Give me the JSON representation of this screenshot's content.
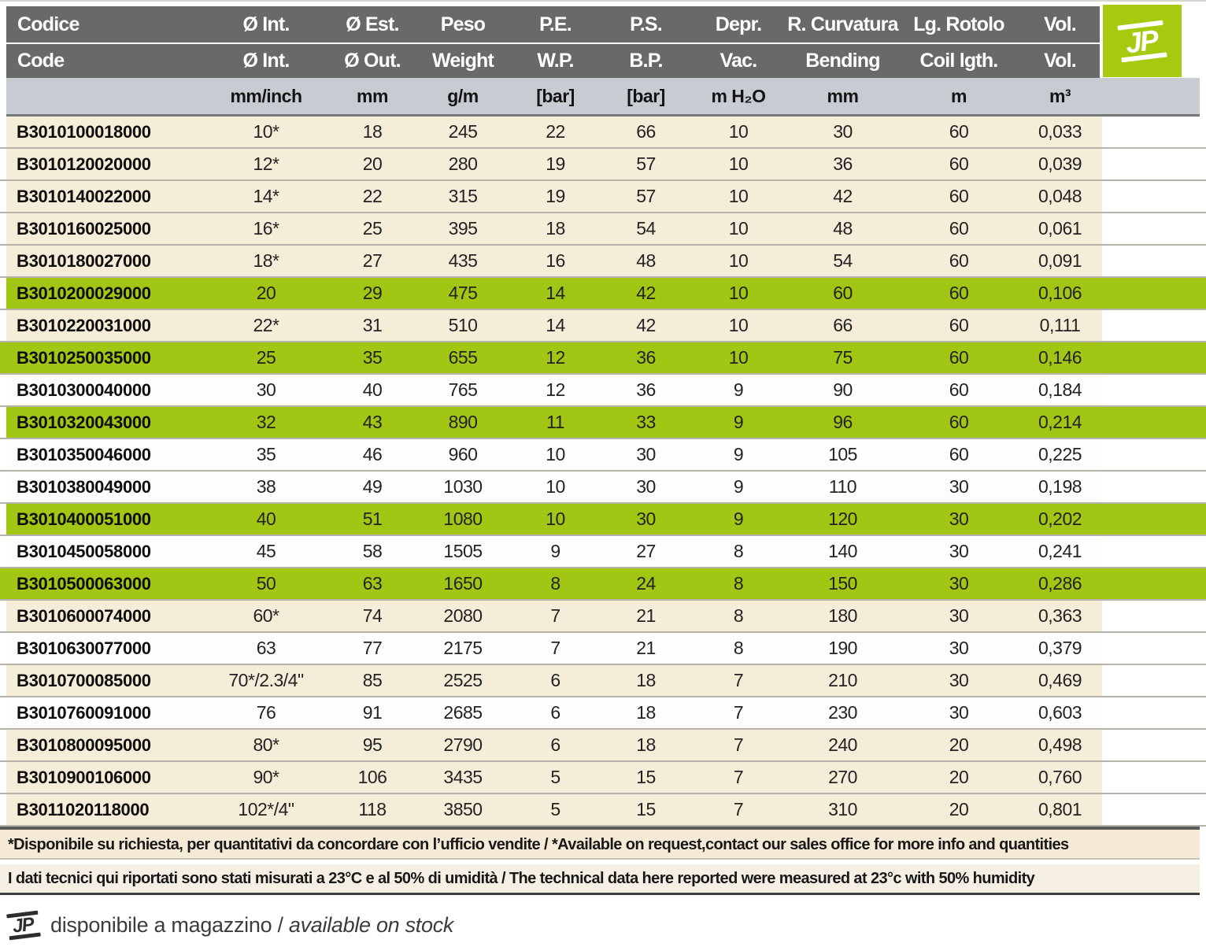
{
  "logo": {
    "text": "JP"
  },
  "table": {
    "header_it": [
      "Codice",
      "Ø Int.",
      "Ø Est.",
      "Peso",
      "P.E.",
      "P.S.",
      "Depr.",
      "R. Curvatura",
      "Lg. Rotolo",
      "Vol."
    ],
    "header_en": [
      "Code",
      "Ø Int.",
      "Ø Out.",
      "Weight",
      "W.P.",
      "B.P.",
      "Vac.",
      "Bending",
      "Coil lgth.",
      "Vol."
    ],
    "units": [
      "",
      "mm/inch",
      "mm",
      "g/m",
      "[bar]",
      "[bar]",
      "m H₂O",
      "mm",
      "m",
      "m³"
    ],
    "column_keys": [
      "code",
      "diam-int",
      "diam-out",
      "weight",
      "working-pressure",
      "burst-pressure",
      "vacuum",
      "bending-radius",
      "coil-length",
      "volume"
    ],
    "rows": [
      {
        "cells": [
          "B3010100018000",
          "10*",
          "18",
          "245",
          "22",
          "66",
          "10",
          "30",
          "60",
          "0,033"
        ],
        "style": "cream",
        "bleed_left": false
      },
      {
        "cells": [
          "B3010120020000",
          "12*",
          "20",
          "280",
          "19",
          "57",
          "10",
          "36",
          "60",
          "0,039"
        ],
        "style": "cream",
        "bleed_left": false
      },
      {
        "cells": [
          "B3010140022000",
          "14*",
          "22",
          "315",
          "19",
          "57",
          "10",
          "42",
          "60",
          "0,048"
        ],
        "style": "cream",
        "bleed_left": false
      },
      {
        "cells": [
          "B3010160025000",
          "16*",
          "25",
          "395",
          "18",
          "54",
          "10",
          "48",
          "60",
          "0,061"
        ],
        "style": "cream",
        "bleed_left": false
      },
      {
        "cells": [
          "B3010180027000",
          "18*",
          "27",
          "435",
          "16",
          "48",
          "10",
          "54",
          "60",
          "0,091"
        ],
        "style": "cream",
        "bleed_left": false
      },
      {
        "cells": [
          "B3010200029000",
          "20",
          "29",
          "475",
          "14",
          "42",
          "10",
          "60",
          "60",
          "0,106"
        ],
        "style": "green",
        "bleed_left": false
      },
      {
        "cells": [
          "B3010220031000",
          "22*",
          "31",
          "510",
          "14",
          "42",
          "10",
          "66",
          "60",
          "0,111"
        ],
        "style": "cream",
        "bleed_left": false
      },
      {
        "cells": [
          "B3010250035000",
          "25",
          "35",
          "655",
          "12",
          "36",
          "10",
          "75",
          "60",
          "0,146"
        ],
        "style": "green",
        "bleed_left": true
      },
      {
        "cells": [
          "B3010300040000",
          "30",
          "40",
          "765",
          "12",
          "36",
          "9",
          "90",
          "60",
          "0,184"
        ],
        "style": "white",
        "bleed_left": false
      },
      {
        "cells": [
          "B3010320043000",
          "32",
          "43",
          "890",
          "11",
          "33",
          "9",
          "96",
          "60",
          "0,214"
        ],
        "style": "green",
        "bleed_left": false
      },
      {
        "cells": [
          "B3010350046000",
          "35",
          "46",
          "960",
          "10",
          "30",
          "9",
          "105",
          "60",
          "0,225"
        ],
        "style": "white",
        "bleed_left": false
      },
      {
        "cells": [
          "B3010380049000",
          "38",
          "49",
          "1030",
          "10",
          "30",
          "9",
          "110",
          "30",
          "0,198"
        ],
        "style": "white",
        "bleed_left": false
      },
      {
        "cells": [
          "B3010400051000",
          "40",
          "51",
          "1080",
          "10",
          "30",
          "9",
          "120",
          "30",
          "0,202"
        ],
        "style": "green",
        "bleed_left": false
      },
      {
        "cells": [
          "B3010450058000",
          "45",
          "58",
          "1505",
          "9",
          "27",
          "8",
          "140",
          "30",
          "0,241"
        ],
        "style": "white",
        "bleed_left": false
      },
      {
        "cells": [
          "B3010500063000",
          "50",
          "63",
          "1650",
          "8",
          "24",
          "8",
          "150",
          "30",
          "0,286"
        ],
        "style": "green",
        "bleed_left": true
      },
      {
        "cells": [
          "B3010600074000",
          "60*",
          "74",
          "2080",
          "7",
          "21",
          "8",
          "180",
          "30",
          "0,363"
        ],
        "style": "cream",
        "bleed_left": false
      },
      {
        "cells": [
          "B3010630077000",
          "63",
          "77",
          "2175",
          "7",
          "21",
          "8",
          "190",
          "30",
          "0,379"
        ],
        "style": "white",
        "bleed_left": false
      },
      {
        "cells": [
          "B3010700085000",
          "70*/2.3/4\"",
          "85",
          "2525",
          "6",
          "18",
          "7",
          "210",
          "30",
          "0,469"
        ],
        "style": "cream",
        "bleed_left": false
      },
      {
        "cells": [
          "B3010760091000",
          "76",
          "91",
          "2685",
          "6",
          "18",
          "7",
          "230",
          "30",
          "0,603"
        ],
        "style": "white",
        "bleed_left": false
      },
      {
        "cells": [
          "B3010800095000",
          "80*",
          "95",
          "2790",
          "6",
          "18",
          "7",
          "240",
          "20",
          "0,498"
        ],
        "style": "cream",
        "bleed_left": false
      },
      {
        "cells": [
          "B3010900106000",
          "90*",
          "106",
          "3435",
          "5",
          "15",
          "7",
          "270",
          "20",
          "0,760"
        ],
        "style": "cream",
        "bleed_left": false
      },
      {
        "cells": [
          "B3011020118000",
          "102*/4\"",
          "118",
          "3850",
          "5",
          "15",
          "7",
          "310",
          "20",
          "0,801"
        ],
        "style": "cream",
        "bleed_left": false
      }
    ]
  },
  "footnotes": {
    "availability": "*Disponibile su richiesta, per quantitativi da concordare con l’ufficio vendite / *Available on request,contact our sales office for more info and quantities",
    "measurement": "I dati tecnici qui riportati sono stati misurati a 23°C e al 50% di umidità / The technical data here reported were measured at 23°c with 50% humidity"
  },
  "legend": {
    "text_it": "disponibile a magazzino / ",
    "text_en": "available on stock"
  },
  "colors": {
    "header_bg": "#6a696a",
    "units_bg": "#c6ccd2",
    "row_green": "#a2c614",
    "row_cream": "#f6edd8",
    "row_white": "#fdfdfb",
    "logo_green": "#a6ca0e",
    "separator": "#b7b3aa",
    "footnote1_bg": "#f4ead6",
    "footnote2_bg": "#f5f0e3"
  }
}
